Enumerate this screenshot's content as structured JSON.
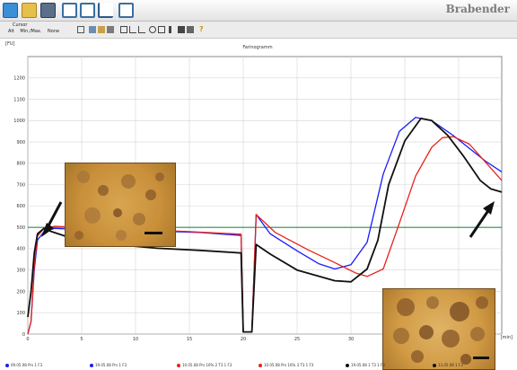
{
  "app": {
    "brand": "Brabender",
    "toolbar_icons": [
      "new-file-icon",
      "open-folder-icon",
      "database-icon",
      "table-view-icon",
      "split-view-icon",
      "chart-icon",
      "grid-icon"
    ]
  },
  "cursor_panel": {
    "label": "Cursor",
    "options": [
      "Alt",
      "Min./Max.",
      "None"
    ]
  },
  "chart_data": {
    "type": "line",
    "title": "Farinogramm",
    "ylabel": "[FU]",
    "xlabel": "[min]",
    "xlim": [
      0,
      44
    ],
    "ylim": [
      0,
      1300
    ],
    "x_ticks": [
      "0",
      "5",
      "10",
      "15",
      "20",
      "25",
      "30",
      "35",
      "40"
    ],
    "y_ticks": [
      "0",
      "100",
      "200",
      "300",
      "400",
      "500",
      "600",
      "700",
      "800",
      "900",
      "1000",
      "1100",
      "1200"
    ],
    "grid": true,
    "reference_line": {
      "y": 500,
      "color": "#2e8b57"
    },
    "series": [
      {
        "color": "#1a1aff",
        "points": [
          [
            0,
            0
          ],
          [
            0.3,
            60
          ],
          [
            0.6,
            300
          ],
          [
            0.9,
            440
          ],
          [
            1.5,
            480
          ],
          [
            2.5,
            495
          ],
          [
            4,
            492
          ],
          [
            8,
            482
          ],
          [
            12,
            482
          ],
          [
            16,
            476
          ],
          [
            19.8,
            462
          ],
          [
            20,
            10
          ],
          [
            20.8,
            10
          ],
          [
            21.2,
            560
          ],
          [
            22.5,
            470
          ],
          [
            25,
            390
          ],
          [
            27,
            330
          ],
          [
            28.5,
            305
          ],
          [
            30,
            325
          ],
          [
            31.5,
            430
          ],
          [
            33,
            750
          ],
          [
            34.5,
            950
          ],
          [
            36,
            1015
          ],
          [
            37.5,
            1000
          ],
          [
            39.5,
            930
          ],
          [
            41,
            870
          ],
          [
            42.5,
            810
          ],
          [
            44,
            760
          ]
        ]
      },
      {
        "color": "#e8231a",
        "points": [
          [
            0,
            0
          ],
          [
            0.3,
            60
          ],
          [
            0.6,
            320
          ],
          [
            0.9,
            460
          ],
          [
            1.5,
            495
          ],
          [
            2.5,
            505
          ],
          [
            5,
            500
          ],
          [
            10,
            490
          ],
          [
            15,
            480
          ],
          [
            19.8,
            468
          ],
          [
            20,
            10
          ],
          [
            20.8,
            10
          ],
          [
            21.2,
            560
          ],
          [
            23,
            475
          ],
          [
            26,
            395
          ],
          [
            28.5,
            335
          ],
          [
            30.5,
            285
          ],
          [
            31.5,
            270
          ],
          [
            33,
            305
          ],
          [
            34.5,
            520
          ],
          [
            36,
            740
          ],
          [
            37.5,
            875
          ],
          [
            38.5,
            920
          ],
          [
            39.5,
            925
          ],
          [
            41,
            890
          ],
          [
            42.5,
            805
          ],
          [
            44,
            720
          ]
        ]
      },
      {
        "color": "#111111",
        "points": [
          [
            0,
            80
          ],
          [
            0.3,
            200
          ],
          [
            0.6,
            380
          ],
          [
            0.9,
            470
          ],
          [
            1.5,
            495
          ],
          [
            2.2,
            480
          ],
          [
            4,
            450
          ],
          [
            8,
            420
          ],
          [
            12,
            402
          ],
          [
            16,
            392
          ],
          [
            19.8,
            380
          ],
          [
            20,
            10
          ],
          [
            20.8,
            10
          ],
          [
            21.2,
            420
          ],
          [
            22.5,
            375
          ],
          [
            25,
            300
          ],
          [
            28.5,
            250
          ],
          [
            30,
            245
          ],
          [
            31.5,
            305
          ],
          [
            32.5,
            440
          ],
          [
            33.5,
            700
          ],
          [
            35,
            905
          ],
          [
            36.5,
            1010
          ],
          [
            37.5,
            1000
          ],
          [
            39,
            930
          ],
          [
            40.5,
            830
          ],
          [
            42,
            720
          ],
          [
            43,
            680
          ],
          [
            44,
            665
          ]
        ]
      }
    ],
    "legend": [
      {
        "label": "09.05.08 Prs 1 F3",
        "color": "#1a1aff"
      },
      {
        "label": "19.05.08 Prs 1 F3",
        "color": "#1a1aff"
      },
      {
        "label": "10.05.08 Prs 16% 2 T3 1 F3",
        "color": "#e8231a"
      },
      {
        "label": "10.05.08 Prs 16% 3 T3 1 F3",
        "color": "#e8231a"
      },
      {
        "label": "19.05.08 1 T3 1 F3",
        "color": "#111111"
      },
      {
        "label": "13.05.08 1 F3",
        "color": "#111111"
      }
    ]
  }
}
